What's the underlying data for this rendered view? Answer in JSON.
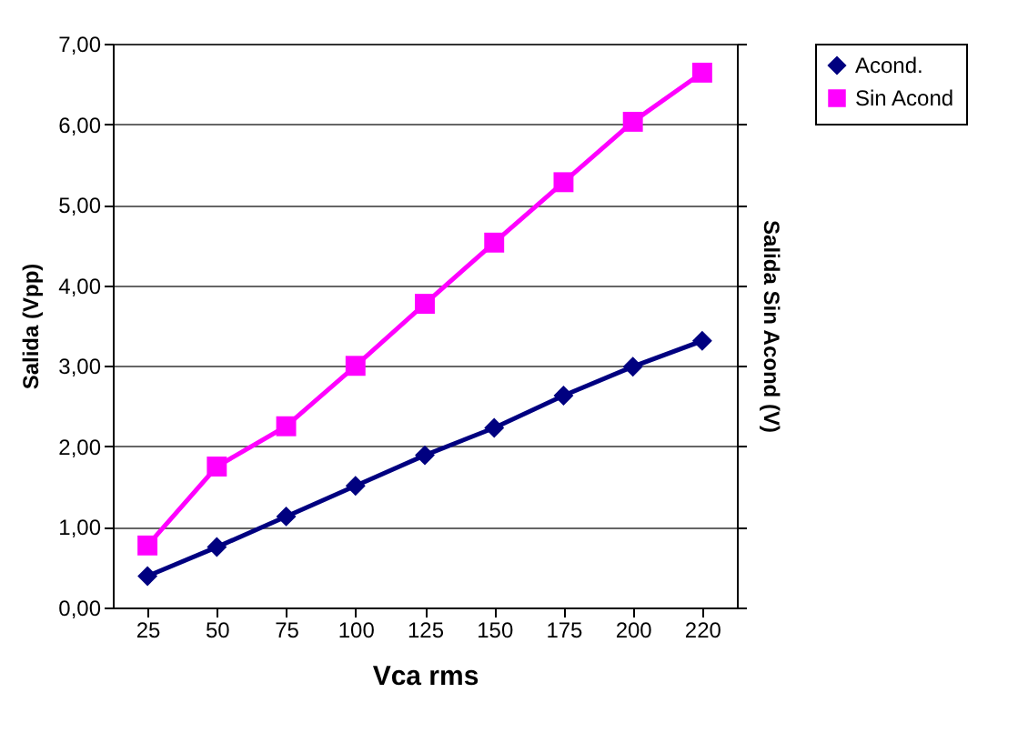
{
  "chart_data": {
    "type": "line",
    "xlabel": "Vca rms",
    "ylabel": "Salida (Vpp)",
    "y2label": "Salida Sin Acond (V)",
    "categories": [
      "25",
      "50",
      "75",
      "100",
      "125",
      "150",
      "175",
      "200",
      "220"
    ],
    "series": [
      {
        "name": "Acond.",
        "color": "#000080",
        "marker": "diamond",
        "values": [
          0.39,
          0.75,
          1.13,
          1.51,
          1.89,
          2.23,
          2.63,
          2.99,
          3.31
        ]
      },
      {
        "name": "Sin Acond",
        "color": "#ff00ff",
        "marker": "square",
        "values": [
          0.77,
          1.75,
          2.25,
          3.0,
          3.77,
          4.53,
          5.28,
          6.03,
          6.64
        ]
      }
    ],
    "ylim": [
      0,
      7
    ],
    "yticks": [
      {
        "value": 0,
        "label": "0,00"
      },
      {
        "value": 1,
        "label": "1,00"
      },
      {
        "value": 2,
        "label": "2,00"
      },
      {
        "value": 3,
        "label": "3,00"
      },
      {
        "value": 4,
        "label": "4,00"
      },
      {
        "value": 5,
        "label": "5,00"
      },
      {
        "value": 6,
        "label": "6,00"
      },
      {
        "value": 7,
        "label": "7,00"
      }
    ],
    "grid": "y",
    "legend": "right",
    "line_style": "solid"
  }
}
